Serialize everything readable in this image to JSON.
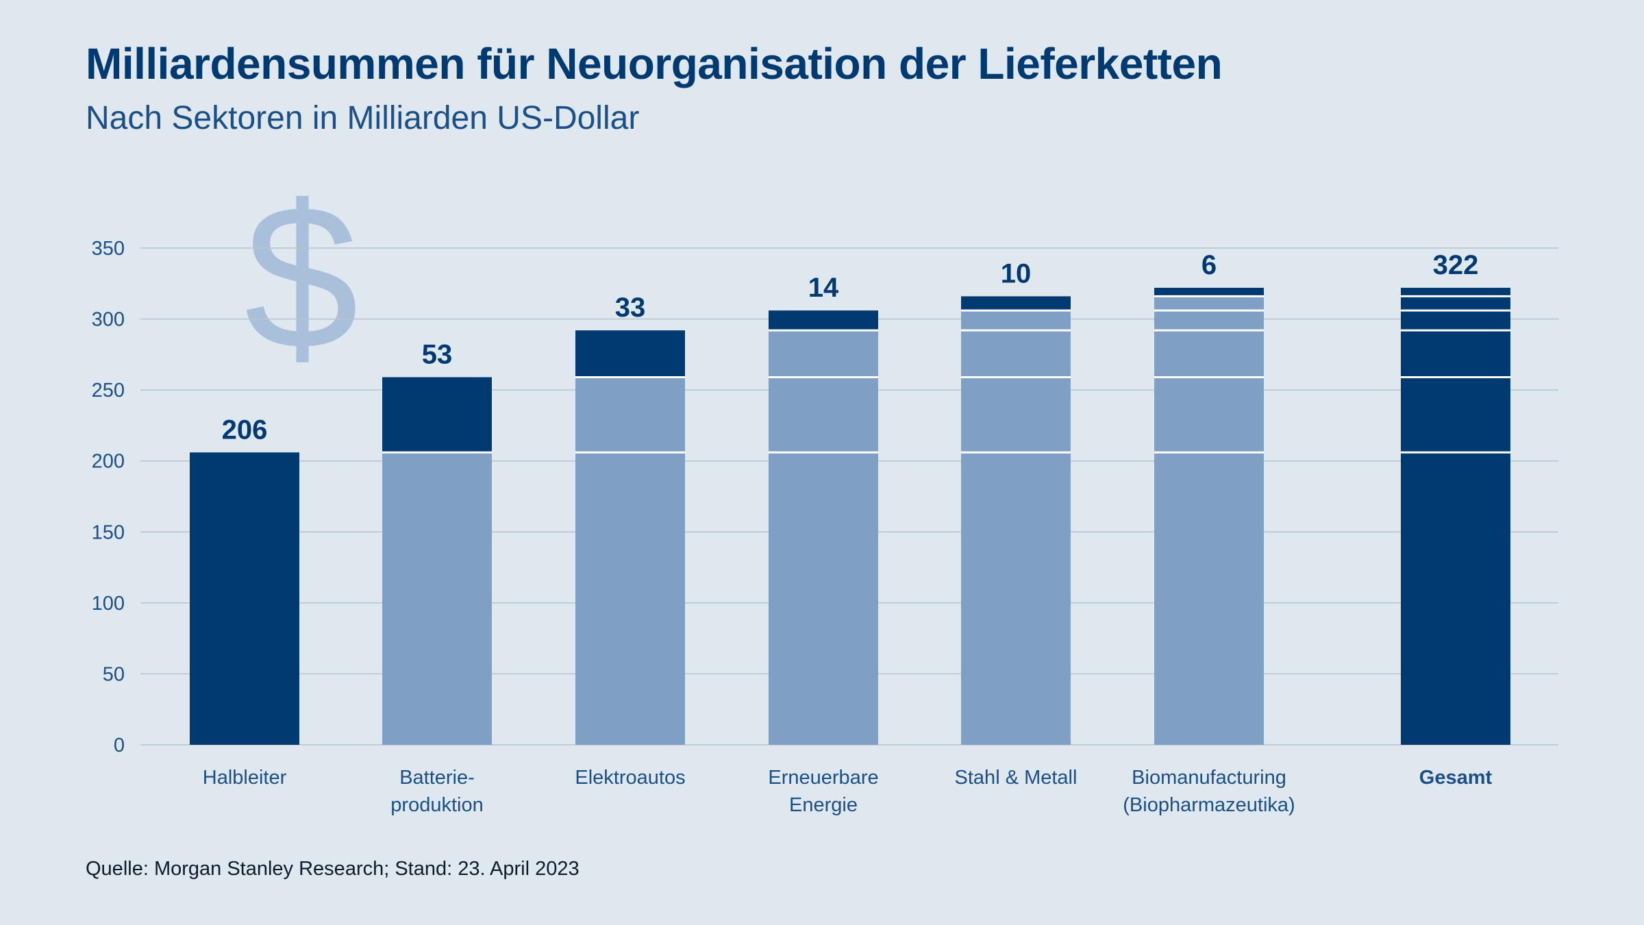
{
  "title": "Milliardensummen für Neuorganisation der Lieferketten",
  "subtitle": "Nach Sektoren in Milliarden US-Dollar",
  "source": "Quelle: Morgan Stanley Research; Stand: 23. April 2023",
  "decoration": {
    "symbol": "$"
  },
  "colors": {
    "background": "#dfe7ef",
    "dark": "#003a70",
    "light": "#7fa0c4",
    "symbol": "#a9c0da",
    "grid": "#b8c3ce"
  },
  "chart_data": {
    "type": "bar",
    "stacking": "waterfall",
    "ylim": [
      0,
      350
    ],
    "yticks": [
      0,
      50,
      100,
      150,
      200,
      250,
      300,
      350
    ],
    "grid": true,
    "categories": [
      {
        "label": [
          "Halbleiter"
        ],
        "value": 206,
        "value_label": "206",
        "bold": false
      },
      {
        "label": [
          "Batterie-",
          "produktion"
        ],
        "value": 53,
        "value_label": "53",
        "bold": false
      },
      {
        "label": [
          "Elektroautos"
        ],
        "value": 33,
        "value_label": "33",
        "bold": false
      },
      {
        "label": [
          "Erneuerbare",
          "Energie"
        ],
        "value": 14,
        "value_label": "14",
        "bold": false
      },
      {
        "label": [
          "Stahl & Metall"
        ],
        "value": 10,
        "value_label": "10",
        "bold": false
      },
      {
        "label": [
          "Biomanufacturing",
          "(Biopharmazeutika)"
        ],
        "value": 6,
        "value_label": "6",
        "bold": false
      }
    ],
    "total": {
      "label": [
        "Gesamt"
      ],
      "value": 322,
      "value_label": "322",
      "bold": true
    }
  }
}
